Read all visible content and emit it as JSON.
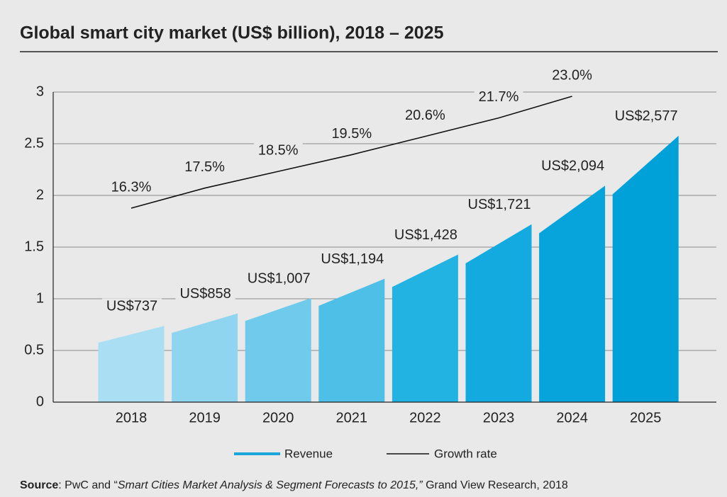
{
  "chart_data": {
    "type": "bar",
    "title": "Global smart city market (US$ billion), 2018 – 2025",
    "categories": [
      "2018",
      "2019",
      "2020",
      "2021",
      "2022",
      "2023",
      "2024",
      "2025"
    ],
    "ylim": [
      0,
      3
    ],
    "yticks": [
      0,
      0.5,
      1,
      1.5,
      2,
      2.5,
      3
    ],
    "grid": true,
    "series": [
      {
        "name": "Revenue",
        "color": "#1aa6da",
        "colors": [
          "#a9def3",
          "#8fd5f0",
          "#6fcaec",
          "#4ebfe7",
          "#22b3e2",
          "#12aadf",
          "#06a4db",
          "#00a0d8"
        ],
        "values": [
          0.737,
          0.858,
          1.007,
          1.194,
          1.428,
          1.721,
          2.094,
          2.577
        ],
        "value_labels": [
          "US$737",
          "US$858",
          "US$1,007",
          "US$1,194",
          "US$1,428",
          "US$1,721",
          "US$2,094",
          "US$2,577"
        ]
      },
      {
        "name": "Growth rate",
        "color": "#111111",
        "type": "line",
        "values": [
          16.3,
          17.5,
          18.5,
          19.5,
          20.6,
          21.7,
          23.0,
          null
        ],
        "value_labels": [
          "16.3%",
          "17.5%",
          "18.5%",
          "19.5%",
          "20.6%",
          "21.7%",
          "23.0%",
          null
        ]
      }
    ],
    "source": [
      "Source",
      ": PwC and “",
      "Smart Cities Market Analysis & Segment Forecasts to 2015,”",
      " Grand View Research, 2018"
    ]
  }
}
